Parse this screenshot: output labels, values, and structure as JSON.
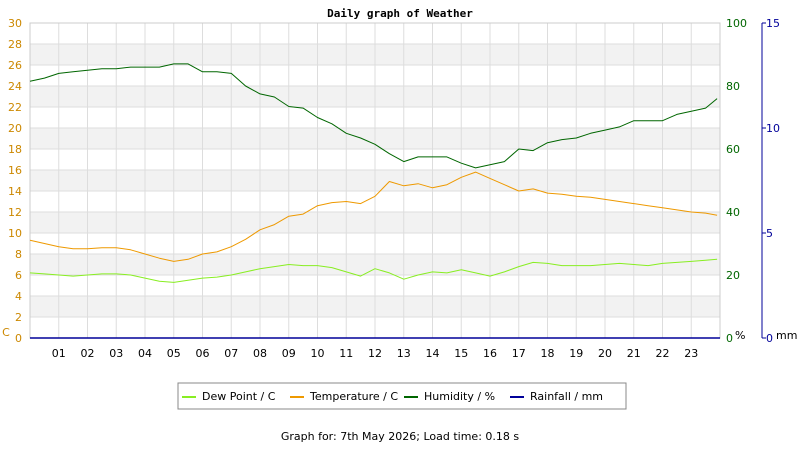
{
  "footer": {
    "label": "Graph for:",
    "date": "7th May 2026",
    "load_time_label": "Load time:",
    "load_time": "0.18 s"
  },
  "chart_data": {
    "type": "line",
    "title": "Daily graph of Weather",
    "x_tick_labels": [
      "01",
      "02",
      "03",
      "04",
      "05",
      "06",
      "07",
      "08",
      "09",
      "10",
      "11",
      "12",
      "13",
      "14",
      "15",
      "16",
      "17",
      "18",
      "19",
      "20",
      "21",
      "22",
      "23"
    ],
    "xlim": [
      0,
      24
    ],
    "grid": true,
    "legend_position": "bottom-center",
    "axes": {
      "left": {
        "unit_label": "C",
        "range": [
          0,
          30
        ],
        "ticks": [
          0,
          2,
          4,
          6,
          8,
          10,
          12,
          14,
          16,
          18,
          20,
          22,
          24,
          26,
          28,
          30
        ],
        "color": "#cc8800"
      },
      "right1": {
        "unit_label": "%",
        "range": [
          0,
          100
        ],
        "ticks": [
          0,
          20,
          40,
          60,
          80,
          100
        ],
        "color": "#006600"
      },
      "right2": {
        "unit_label": "mm",
        "range": [
          0,
          15
        ],
        "ticks": [
          0,
          5,
          10,
          15
        ],
        "color": "#000099"
      }
    },
    "series": [
      {
        "name": "Dew Point / C",
        "axis": "left",
        "color": "#88ee22",
        "x": [
          0,
          0.5,
          1,
          1.5,
          2,
          2.5,
          3,
          3.5,
          4,
          4.5,
          5,
          5.5,
          6,
          6.5,
          7,
          7.5,
          8,
          8.5,
          9,
          9.5,
          10,
          10.5,
          11,
          11.5,
          12,
          12.5,
          13,
          13.5,
          14,
          14.5,
          15,
          15.5,
          16,
          16.5,
          17,
          17.5,
          18,
          18.5,
          19,
          19.5,
          20,
          20.5,
          21,
          21.5,
          22,
          22.5,
          23,
          23.5,
          23.9
        ],
        "values": [
          6.2,
          6.1,
          6.0,
          5.9,
          6.0,
          6.1,
          6.1,
          6.0,
          5.7,
          5.4,
          5.3,
          5.5,
          5.7,
          5.8,
          6.0,
          6.3,
          6.6,
          6.8,
          7.0,
          6.9,
          6.9,
          6.7,
          6.3,
          5.9,
          6.6,
          6.2,
          5.6,
          6.0,
          6.3,
          6.2,
          6.5,
          6.2,
          5.9,
          6.3,
          6.8,
          7.2,
          7.1,
          6.9,
          6.9,
          6.9,
          7.0,
          7.1,
          7.0,
          6.9,
          7.1,
          7.2,
          7.3,
          7.4,
          7.5
        ]
      },
      {
        "name": "Temperature / C",
        "axis": "left",
        "color": "#ee9900",
        "x": [
          0,
          0.5,
          1,
          1.5,
          2,
          2.5,
          3,
          3.5,
          4,
          4.5,
          5,
          5.5,
          6,
          6.5,
          7,
          7.5,
          8,
          8.5,
          9,
          9.5,
          10,
          10.5,
          11,
          11.5,
          12,
          12.5,
          13,
          13.5,
          14,
          14.5,
          15,
          15.5,
          16,
          16.5,
          17,
          17.5,
          18,
          18.5,
          19,
          19.5,
          20,
          20.5,
          21,
          21.5,
          22,
          22.5,
          23,
          23.5,
          23.9
        ],
        "values": [
          9.3,
          9.0,
          8.7,
          8.5,
          8.5,
          8.6,
          8.6,
          8.4,
          8.0,
          7.6,
          7.3,
          7.5,
          8.0,
          8.2,
          8.7,
          9.4,
          10.3,
          10.8,
          11.6,
          11.8,
          12.6,
          12.9,
          13.0,
          12.8,
          13.5,
          14.9,
          14.5,
          14.7,
          14.3,
          14.6,
          15.3,
          15.8,
          15.2,
          14.6,
          14.0,
          14.2,
          13.8,
          13.7,
          13.5,
          13.4,
          13.2,
          13.0,
          12.8,
          12.6,
          12.4,
          12.2,
          12.0,
          11.9,
          11.7
        ]
      },
      {
        "name": "Humidity / %",
        "axis": "right1",
        "color": "#006600",
        "x": [
          0,
          0.5,
          1,
          1.5,
          2,
          2.5,
          3,
          3.5,
          4,
          4.5,
          5,
          5.5,
          6,
          6.5,
          7,
          7.5,
          8,
          8.5,
          9,
          9.5,
          10,
          10.5,
          11,
          11.5,
          12,
          12.5,
          13,
          13.5,
          14,
          14.5,
          15,
          15.5,
          16,
          16.5,
          17,
          17.5,
          18,
          18.5,
          19,
          19.5,
          20,
          20.5,
          21,
          21.5,
          22,
          22.5,
          23,
          23.5,
          23.9
        ],
        "values": [
          81.5,
          82.5,
          84,
          84.5,
          85,
          85.5,
          85.5,
          86,
          86,
          86,
          87,
          87,
          84.5,
          84.5,
          84,
          80,
          77.5,
          76.5,
          73.5,
          73,
          70,
          68,
          65,
          63.5,
          61.5,
          58.5,
          56,
          57.5,
          57.5,
          57.5,
          55.5,
          54,
          55,
          56,
          60,
          59.5,
          62,
          63,
          63.5,
          65,
          66,
          67,
          69,
          69,
          69,
          71,
          72,
          73,
          76
        ]
      },
      {
        "name": "Rainfall / mm",
        "axis": "right2",
        "color": "#000099",
        "x": [
          0,
          24
        ],
        "values": [
          0,
          0
        ]
      }
    ]
  }
}
